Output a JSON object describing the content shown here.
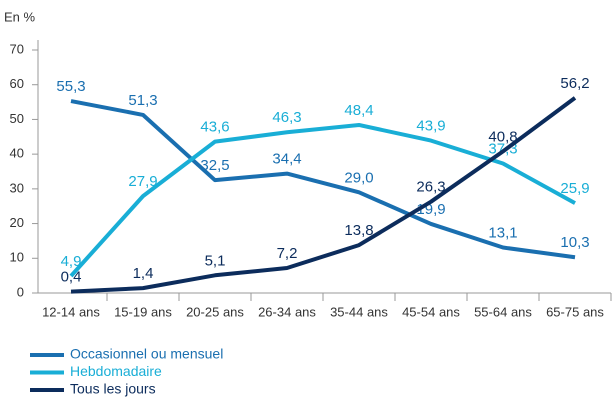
{
  "chart_data": {
    "type": "line",
    "y_unit_label": "En %",
    "categories": [
      "12-14 ans",
      "15-19 ans",
      "20-25 ans",
      "26-34 ans",
      "35-44 ans",
      "45-54 ans",
      "55-64 ans",
      "65-75 ans"
    ],
    "series": [
      {
        "name": "Occasionnel ou mensuel",
        "color": "#1a6fb0",
        "values": [
          55.3,
          51.3,
          32.5,
          34.4,
          29.0,
          19.9,
          13.1,
          10.3
        ],
        "value_labels": [
          "55,3",
          "51,3",
          "32,5",
          "34,4",
          "29,0",
          "19,9",
          "13,1",
          "10,3"
        ]
      },
      {
        "name": "Hebdomadaire",
        "color": "#19aed6",
        "values": [
          4.9,
          27.9,
          43.6,
          46.3,
          48.4,
          43.9,
          37.3,
          25.9
        ],
        "value_labels": [
          "4,9",
          "27,9",
          "43,6",
          "46,3",
          "48,4",
          "43,9",
          "37,3",
          "25,9"
        ]
      },
      {
        "name": "Tous les jours",
        "color": "#0c2c5c",
        "values": [
          0.4,
          1.4,
          5.1,
          7.2,
          13.8,
          26.3,
          40.8,
          56.2
        ],
        "value_labels": [
          "0,4",
          "1,4",
          "5,1",
          "7,2",
          "13,8",
          "26,3",
          "40,8",
          "56,2"
        ]
      }
    ],
    "ylim": [
      0,
      70
    ],
    "yticks": [
      0,
      10,
      20,
      30,
      40,
      50,
      60,
      70
    ],
    "grid": false
  }
}
